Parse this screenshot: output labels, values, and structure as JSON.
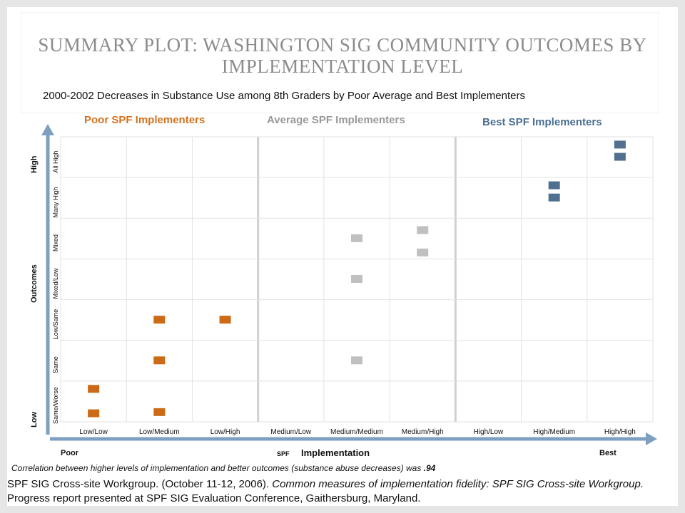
{
  "title": "SUMMARY PLOT: WASHINGTON SIG COMMUNITY OUTCOMES BY IMPLEMENTATION LEVEL",
  "subtitle": "2000-2002 Decreases in Substance Use among 8th Graders by Poor Average and Best Implementers",
  "groups": {
    "poor": "Poor SPF Implementers",
    "average": "Average  SPF Implementers",
    "best": "Best SPF Implementers"
  },
  "y_axis": {
    "title": "Outcomes",
    "high": "High",
    "low": "Low"
  },
  "x_axis": {
    "poor": "Poor",
    "spf": "SPF",
    "implementation": "Implementation",
    "best": "Best"
  },
  "correlation_note": {
    "text": "Correlation between higher levels of implementation and better outcomes (substance abuse decreases) was",
    "value": ".94"
  },
  "citation": {
    "part1": "SPF SIG Cross-site Workgroup. (October 11-12, 2006). ",
    "italic": "Common measures of implementation fidelity: SPF SIG Cross-site Workgroup.",
    "part2": " Progress report presented at SPF SIG Evaluation Conference, Gaithersburg, Maryland."
  },
  "colors": {
    "poor": "#cc6a17",
    "average": "#c0c0c0",
    "best": "#51708f",
    "arrow": "#7f9fc0",
    "grid": "#e2e2e2"
  },
  "chart_data": {
    "type": "scatter",
    "x_categories": [
      "Low/Low",
      "Low/Medium",
      "Low/High",
      "Medium/Low",
      "Medium/Medium",
      "Medium/High",
      "High/Low",
      "High/Medium",
      "High/High"
    ],
    "y_categories": [
      "Same/Worse",
      "Same",
      "Low/Same",
      "Mixed/Low",
      "Mixed",
      "Many High",
      "All High"
    ],
    "series": [
      {
        "group": "poor",
        "points": [
          {
            "x": "Low/Low",
            "y": 0.3
          },
          {
            "x": "Low/Low",
            "y": -0.3
          },
          {
            "x": "Low/Medium",
            "y": -0.27
          },
          {
            "x": "Low/Medium",
            "y": 1.0
          },
          {
            "x": "Low/Medium",
            "y": 2.0
          },
          {
            "x": "Low/High",
            "y": 2.0
          }
        ]
      },
      {
        "group": "average",
        "points": [
          {
            "x": "Medium/Medium",
            "y": 1.0
          },
          {
            "x": "Medium/Medium",
            "y": 3.0
          },
          {
            "x": "Medium/Medium",
            "y": 4.0
          },
          {
            "x": "Medium/High",
            "y": 3.65
          },
          {
            "x": "Medium/High",
            "y": 4.2
          }
        ]
      },
      {
        "group": "best",
        "points": [
          {
            "x": "High/Medium",
            "y": 5.0
          },
          {
            "x": "High/Medium",
            "y": 5.3
          },
          {
            "x": "High/High",
            "y": 6.0
          },
          {
            "x": "High/High",
            "y": 6.3
          }
        ]
      }
    ]
  }
}
